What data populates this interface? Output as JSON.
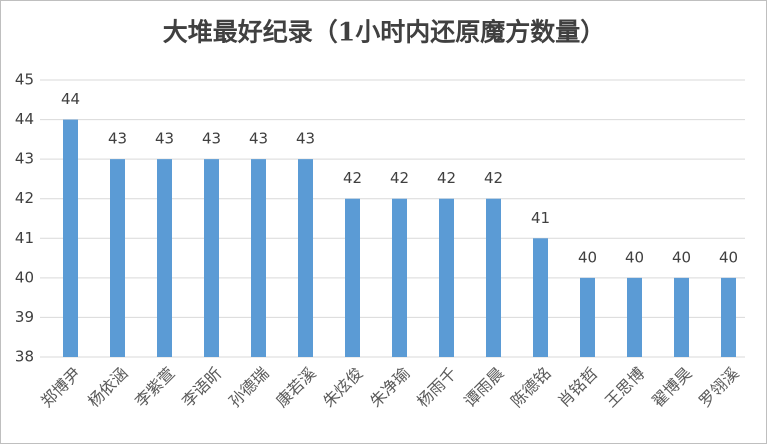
{
  "chart_data": {
    "type": "bar",
    "title": "大堆最好纪录（1小时内还原魔方数量）",
    "categories": [
      "郑博尹",
      "杨依涵",
      "李紫萱",
      "李语昕",
      "孙德瑞",
      "康若溪",
      "朱炫俊",
      "朱净瑜",
      "杨雨千",
      "谭雨晨",
      "陈德铭",
      "肖铭哲",
      "王思博",
      "翟博昊",
      "罗翎溪"
    ],
    "values": [
      44,
      43,
      43,
      43,
      43,
      43,
      42,
      42,
      42,
      42,
      41,
      40,
      40,
      40,
      40
    ],
    "color": "#5b9bd5",
    "ylim": [
      38,
      45
    ],
    "yticks": [
      38,
      39,
      40,
      41,
      42,
      43,
      44,
      45
    ],
    "grid": true
  }
}
